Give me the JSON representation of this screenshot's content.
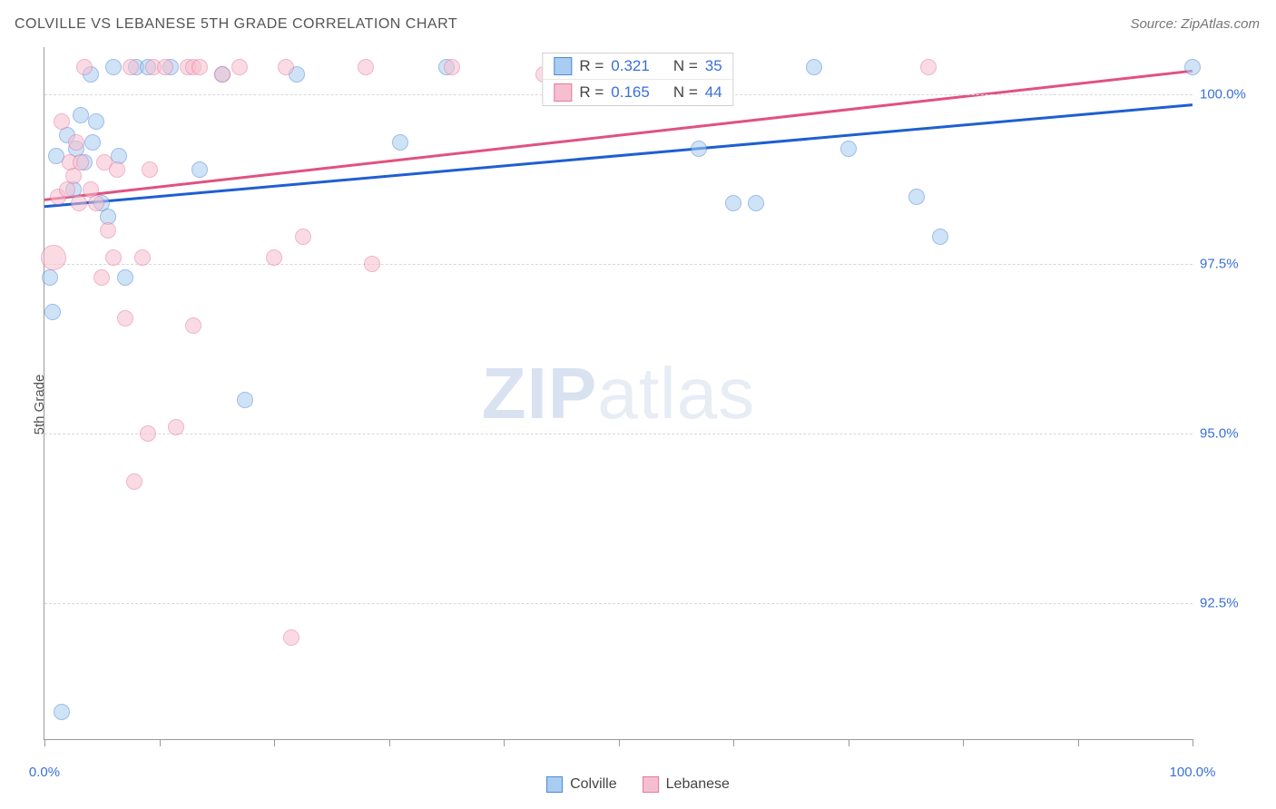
{
  "title": "COLVILLE VS LEBANESE 5TH GRADE CORRELATION CHART",
  "source_label": "Source: ZipAtlas.com",
  "ylabel": "5th Grade",
  "watermark": {
    "bold": "ZIP",
    "rest": "atlas"
  },
  "chart": {
    "type": "scatter",
    "background_color": "#ffffff",
    "grid_color": "#d8d8d8",
    "axis_color": "#9a9a9a",
    "text_color": "#555555",
    "value_color": "#3a6fd8",
    "xlim": [
      0,
      100
    ],
    "ylim": [
      90.5,
      100.7
    ],
    "x_ticks": [
      0,
      10,
      20,
      30,
      40,
      50,
      60,
      70,
      80,
      90,
      100
    ],
    "x_tick_labels": {
      "0": "0.0%",
      "100": "100.0%"
    },
    "y_gridlines": [
      92.5,
      95.0,
      97.5,
      100.0
    ],
    "y_tick_labels": [
      "92.5%",
      "95.0%",
      "97.5%",
      "100.0%"
    ],
    "point_radius_default": 9,
    "point_opacity": 0.55,
    "series": [
      {
        "name": "Colville",
        "fill": "#a9cdf2",
        "stroke": "#4f87d6",
        "r_value": "0.321",
        "n_value": "35",
        "trend": {
          "y_at_x0": 98.35,
          "y_at_x100": 99.85,
          "stroke": "#1f5fd0",
          "width": 3
        },
        "points": [
          {
            "x": 0.5,
            "y": 97.3
          },
          {
            "x": 0.7,
            "y": 96.8
          },
          {
            "x": 1.0,
            "y": 99.1
          },
          {
            "x": 1.5,
            "y": 90.9
          },
          {
            "x": 2.0,
            "y": 99.4
          },
          {
            "x": 2.5,
            "y": 98.6
          },
          {
            "x": 2.8,
            "y": 99.2
          },
          {
            "x": 3.2,
            "y": 99.7
          },
          {
            "x": 3.5,
            "y": 99.0
          },
          {
            "x": 4.0,
            "y": 100.3
          },
          {
            "x": 4.2,
            "y": 99.3
          },
          {
            "x": 4.5,
            "y": 99.6
          },
          {
            "x": 5.0,
            "y": 98.4
          },
          {
            "x": 5.5,
            "y": 98.2
          },
          {
            "x": 6.0,
            "y": 100.4
          },
          {
            "x": 6.5,
            "y": 99.1
          },
          {
            "x": 7.0,
            "y": 97.3
          },
          {
            "x": 8.0,
            "y": 100.4
          },
          {
            "x": 9.0,
            "y": 100.4
          },
          {
            "x": 11.0,
            "y": 100.4
          },
          {
            "x": 13.5,
            "y": 98.9
          },
          {
            "x": 15.5,
            "y": 100.3
          },
          {
            "x": 17.5,
            "y": 95.5
          },
          {
            "x": 22.0,
            "y": 100.3
          },
          {
            "x": 31.0,
            "y": 99.3
          },
          {
            "x": 35.0,
            "y": 100.4
          },
          {
            "x": 53.0,
            "y": 100.4
          },
          {
            "x": 57.0,
            "y": 99.2
          },
          {
            "x": 60.0,
            "y": 98.4
          },
          {
            "x": 62.0,
            "y": 98.4
          },
          {
            "x": 67.0,
            "y": 100.4
          },
          {
            "x": 70.0,
            "y": 99.2
          },
          {
            "x": 76.0,
            "y": 98.5
          },
          {
            "x": 78.0,
            "y": 97.9
          },
          {
            "x": 100.0,
            "y": 100.4
          }
        ]
      },
      {
        "name": "Lebanese",
        "fill": "#f6bfcf",
        "stroke": "#e578a0",
        "r_value": "0.165",
        "n_value": "44",
        "trend": {
          "y_at_x0": 98.45,
          "y_at_x100": 100.35,
          "stroke": "#e0527f",
          "width": 3
        },
        "points": [
          {
            "x": 0.8,
            "y": 97.6,
            "r": 14
          },
          {
            "x": 1.2,
            "y": 98.5
          },
          {
            "x": 1.5,
            "y": 99.6
          },
          {
            "x": 2.0,
            "y": 98.6
          },
          {
            "x": 2.2,
            "y": 99.0
          },
          {
            "x": 2.5,
            "y": 98.8
          },
          {
            "x": 2.8,
            "y": 99.3
          },
          {
            "x": 3.0,
            "y": 98.4
          },
          {
            "x": 3.2,
            "y": 99.0
          },
          {
            "x": 3.5,
            "y": 100.4
          },
          {
            "x": 4.0,
            "y": 98.6
          },
          {
            "x": 4.5,
            "y": 98.4
          },
          {
            "x": 5.0,
            "y": 97.3
          },
          {
            "x": 5.2,
            "y": 99.0
          },
          {
            "x": 5.5,
            "y": 98.0
          },
          {
            "x": 6.0,
            "y": 97.6
          },
          {
            "x": 6.3,
            "y": 98.9
          },
          {
            "x": 7.0,
            "y": 96.7
          },
          {
            "x": 7.5,
            "y": 100.4
          },
          {
            "x": 7.8,
            "y": 94.3
          },
          {
            "x": 8.5,
            "y": 97.6
          },
          {
            "x": 9.0,
            "y": 95.0
          },
          {
            "x": 9.2,
            "y": 98.9
          },
          {
            "x": 9.5,
            "y": 100.4
          },
          {
            "x": 10.5,
            "y": 100.4
          },
          {
            "x": 11.5,
            "y": 95.1
          },
          {
            "x": 12.5,
            "y": 100.4
          },
          {
            "x": 13.0,
            "y": 100.4
          },
          {
            "x": 13.0,
            "y": 96.6
          },
          {
            "x": 13.5,
            "y": 100.4
          },
          {
            "x": 15.5,
            "y": 100.3
          },
          {
            "x": 17.0,
            "y": 100.4
          },
          {
            "x": 20.0,
            "y": 97.6
          },
          {
            "x": 21.0,
            "y": 100.4
          },
          {
            "x": 21.5,
            "y": 92.0
          },
          {
            "x": 22.5,
            "y": 97.9
          },
          {
            "x": 28.0,
            "y": 100.4
          },
          {
            "x": 28.5,
            "y": 97.5
          },
          {
            "x": 35.5,
            "y": 100.4
          },
          {
            "x": 43.5,
            "y": 100.3
          },
          {
            "x": 50.0,
            "y": 100.4
          },
          {
            "x": 54.0,
            "y": 100.4
          },
          {
            "x": 56.0,
            "y": 100.4
          },
          {
            "x": 77.0,
            "y": 100.4
          }
        ]
      }
    ]
  },
  "legend_r": {
    "r_prefix": "R = ",
    "n_prefix": "N = "
  },
  "legend_series": [
    {
      "label": "Colville",
      "fill": "#a9cdf2",
      "stroke": "#4f87d6"
    },
    {
      "label": "Lebanese",
      "fill": "#f6bfcf",
      "stroke": "#e578a0"
    }
  ]
}
